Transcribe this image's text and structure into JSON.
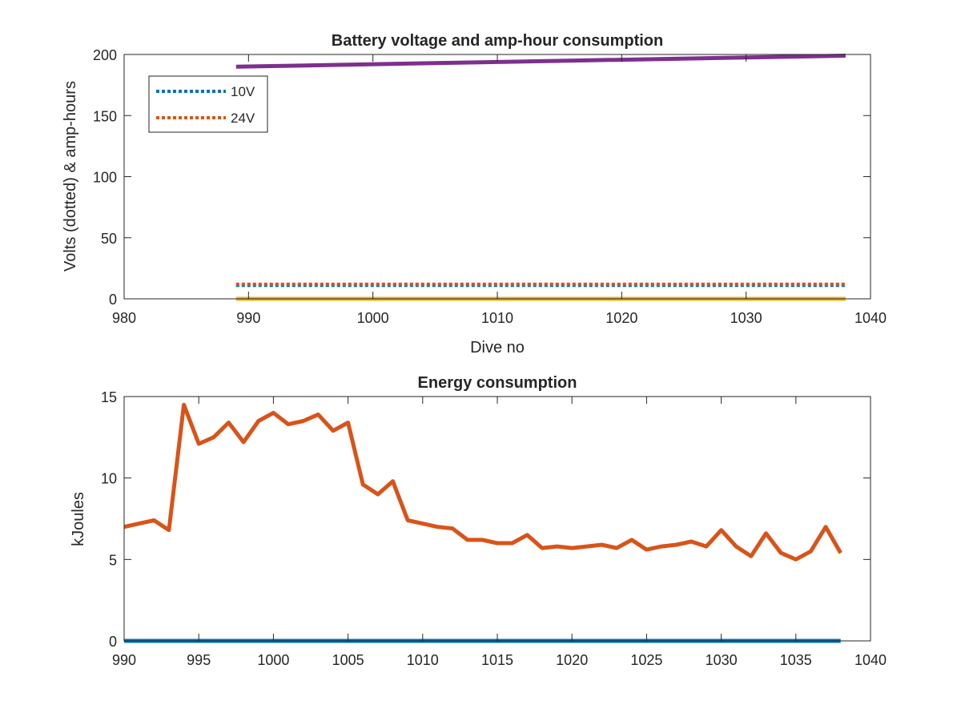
{
  "chart_data": [
    {
      "type": "line",
      "title": "Battery voltage and amp-hour consumption",
      "xlabel": "Dive no",
      "ylabel": "Volts (dotted) & amp-hours",
      "xlim": [
        980,
        1040
      ],
      "ylim": [
        0,
        200
      ],
      "xticks": [
        "980",
        "990",
        "1000",
        "1010",
        "1020",
        "1030",
        "1040"
      ],
      "yticks": [
        "0",
        "50",
        "100",
        "150",
        "200"
      ],
      "grid": false,
      "legend": {
        "placement": "top-left",
        "entries": [
          "10V",
          "24V"
        ]
      },
      "series": [
        {
          "name": "10V",
          "style": "dotted",
          "color": "#0072BD",
          "x": [
            989,
            1038
          ],
          "values": [
            11,
            11
          ]
        },
        {
          "name": "24V",
          "style": "dotted",
          "color": "#D95319",
          "x": [
            989,
            1038
          ],
          "values": [
            12,
            12
          ]
        },
        {
          "style": "solid",
          "color": "#EDB120",
          "x": [
            989,
            1038
          ],
          "values": [
            0,
            0
          ]
        },
        {
          "style": "solid",
          "color": "#7E2F8E",
          "x": [
            989,
            1038
          ],
          "values": [
            190,
            199
          ]
        }
      ]
    },
    {
      "type": "line",
      "title": "Energy consumption",
      "xlabel": "",
      "ylabel": "kJoules",
      "xlim": [
        990,
        1040
      ],
      "ylim": [
        0,
        15
      ],
      "xticks": [
        "990",
        "995",
        "1000",
        "1005",
        "1010",
        "1015",
        "1020",
        "1025",
        "1030",
        "1035",
        "1040"
      ],
      "yticks": [
        "0",
        "5",
        "10",
        "15"
      ],
      "grid": false,
      "series": [
        {
          "style": "solid",
          "color": "#D95319",
          "x": [
            990,
            991,
            992,
            993,
            994,
            995,
            996,
            997,
            998,
            999,
            1000,
            1001,
            1002,
            1003,
            1004,
            1005,
            1006,
            1007,
            1008,
            1009,
            1010,
            1011,
            1012,
            1013,
            1014,
            1015,
            1016,
            1017,
            1018,
            1019,
            1020,
            1021,
            1022,
            1023,
            1024,
            1025,
            1026,
            1027,
            1028,
            1029,
            1030,
            1031,
            1032,
            1033,
            1034,
            1035,
            1036,
            1037,
            1038
          ],
          "values": [
            7.0,
            7.2,
            7.4,
            6.8,
            14.5,
            12.1,
            12.5,
            13.4,
            12.2,
            13.5,
            14.0,
            13.3,
            13.5,
            13.9,
            12.9,
            13.4,
            9.6,
            9.0,
            9.8,
            7.4,
            7.2,
            7.0,
            6.9,
            6.2,
            6.2,
            6.0,
            6.0,
            6.5,
            5.7,
            5.8,
            5.7,
            5.8,
            5.9,
            5.7,
            6.2,
            5.6,
            5.8,
            5.9,
            6.1,
            5.8,
            6.8,
            5.8,
            5.2,
            6.6,
            5.4,
            5.0,
            5.5,
            7.0,
            5.4
          ]
        },
        {
          "style": "solid",
          "color": "#0072BD",
          "x": [
            990,
            1038
          ],
          "values": [
            0,
            0
          ]
        }
      ]
    }
  ]
}
